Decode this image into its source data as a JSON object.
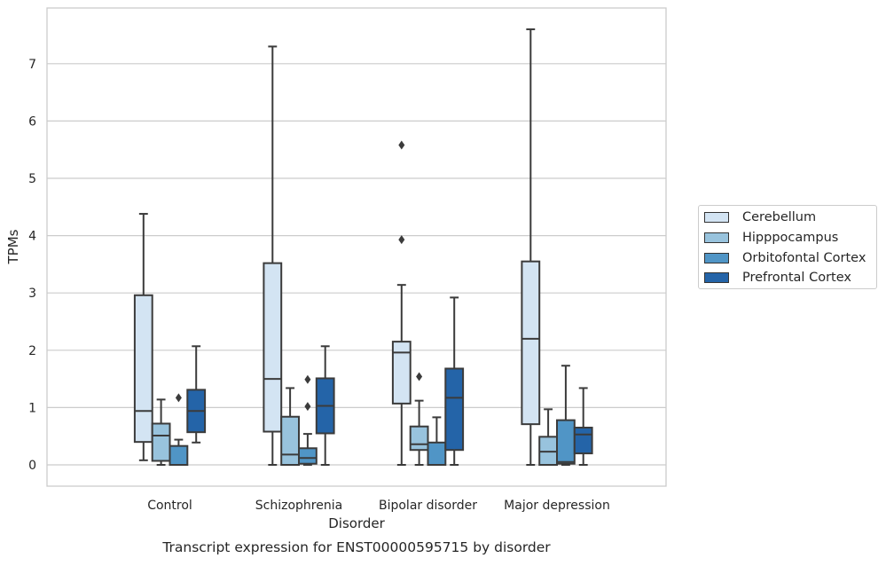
{
  "chart_data": {
    "type": "box",
    "title": "Transcript expression for ENST00000595715 by disorder",
    "xlabel": "Disorder",
    "ylabel": "TPMs",
    "ylim": [
      -0.37,
      7.95
    ],
    "yticks": [
      "0",
      "1",
      "2",
      "3",
      "4",
      "5",
      "6",
      "7"
    ],
    "grid": true,
    "legend_position": "right",
    "categories": [
      "Control",
      "Schizophrenia",
      "Bipolar disorder",
      "Major depression"
    ],
    "series": [
      {
        "name": "Cerebellum",
        "color": "#d3e4f3",
        "boxes": [
          {
            "whisker_low": 0.08,
            "q1": 0.4,
            "median": 0.94,
            "q3": 2.96,
            "whisker_high": 4.38,
            "outliers": []
          },
          {
            "whisker_low": 0.0,
            "q1": 0.58,
            "median": 1.5,
            "q3": 3.52,
            "whisker_high": 7.3,
            "outliers": []
          },
          {
            "whisker_low": 0.0,
            "q1": 1.07,
            "median": 1.96,
            "q3": 2.15,
            "whisker_high": 3.14,
            "outliers": [
              3.93,
              5.58
            ]
          },
          {
            "whisker_low": 0.0,
            "q1": 0.71,
            "median": 2.2,
            "q3": 3.55,
            "whisker_high": 7.6,
            "outliers": []
          }
        ]
      },
      {
        "name": "Hipppocampus",
        "color": "#98c3dd",
        "boxes": [
          {
            "whisker_low": 0.0,
            "q1": 0.07,
            "median": 0.51,
            "q3": 0.72,
            "whisker_high": 1.14,
            "outliers": []
          },
          {
            "whisker_low": 0.0,
            "q1": 0.0,
            "median": 0.18,
            "q3": 0.84,
            "whisker_high": 1.34,
            "outliers": []
          },
          {
            "whisker_low": 0.0,
            "q1": 0.26,
            "median": 0.36,
            "q3": 0.67,
            "whisker_high": 1.12,
            "outliers": [
              1.54
            ]
          },
          {
            "whisker_low": 0.0,
            "q1": 0.0,
            "median": 0.23,
            "q3": 0.49,
            "whisker_high": 0.97,
            "outliers": []
          }
        ]
      },
      {
        "name": "Orbitofontal Cortex",
        "color": "#5095c6",
        "boxes": [
          {
            "whisker_low": 0.0,
            "q1": 0.0,
            "median": 0.0,
            "q3": 0.33,
            "whisker_high": 0.44,
            "outliers": [
              1.17
            ]
          },
          {
            "whisker_low": 0.0,
            "q1": 0.02,
            "median": 0.12,
            "q3": 0.29,
            "whisker_high": 0.54,
            "outliers": [
              1.02,
              1.49
            ]
          },
          {
            "whisker_low": 0.0,
            "q1": 0.0,
            "median": 0.0,
            "q3": 0.39,
            "whisker_high": 0.83,
            "outliers": []
          },
          {
            "whisker_low": 0.0,
            "q1": 0.02,
            "median": 0.05,
            "q3": 0.78,
            "whisker_high": 1.73,
            "outliers": []
          }
        ]
      },
      {
        "name": "Prefrontal Cortex",
        "color": "#2464a8",
        "boxes": [
          {
            "whisker_low": 0.39,
            "q1": 0.57,
            "median": 0.94,
            "q3": 1.31,
            "whisker_high": 2.07,
            "outliers": []
          },
          {
            "whisker_low": 0.0,
            "q1": 0.55,
            "median": 1.03,
            "q3": 1.51,
            "whisker_high": 2.07,
            "outliers": []
          },
          {
            "whisker_low": 0.0,
            "q1": 0.26,
            "median": 1.17,
            "q3": 1.68,
            "whisker_high": 2.92,
            "outliers": []
          },
          {
            "whisker_low": 0.0,
            "q1": 0.2,
            "median": 0.53,
            "q3": 0.65,
            "whisker_high": 1.34,
            "outliers": []
          }
        ]
      }
    ]
  }
}
